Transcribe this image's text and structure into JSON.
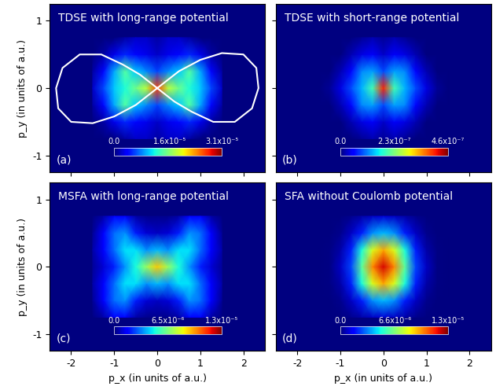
{
  "chart_data": [
    {
      "type": "heatmap",
      "title": "TDSE with long-range potential",
      "annotations": [
        "(a)"
      ],
      "ylabel": "p_y (in units of a.u.)",
      "tick_labels": "y",
      "xlim": [
        -2.5,
        2.5
      ],
      "ylim": [
        -1.25,
        1.25
      ],
      "xticks": [
        -2,
        -1,
        0,
        1,
        2
      ],
      "yticks": [
        -1,
        0,
        1
      ],
      "x": [
        -1.5,
        -1.25,
        -1,
        -0.75,
        -0.5,
        -0.25,
        0,
        0.25,
        0.5,
        0.75,
        1,
        1.25,
        1.5
      ],
      "y": [
        -0.75,
        -0.5,
        -0.25,
        0,
        0.25,
        0.5,
        0.75
      ],
      "cells": [
        [
          0,
          0,
          0,
          1e-06,
          2e-06,
          2e-06,
          1e-06,
          2e-06,
          2e-06,
          1e-06,
          0,
          0,
          0
        ],
        [
          0,
          1e-06,
          3e-06,
          5e-06,
          4e-06,
          3e-06,
          2e-06,
          3e-06,
          4e-06,
          5e-06,
          3e-06,
          1e-06,
          0
        ],
        [
          1e-06,
          4e-06,
          9e-06,
          1.4e-05,
          1e-05,
          8e-06,
          6e-06,
          8e-06,
          1e-05,
          1.4e-05,
          9e-06,
          4e-06,
          1e-06
        ],
        [
          2e-06,
          6e-06,
          1e-05,
          1.2e-05,
          1.5e-05,
          1.8e-05,
          2.6e-05,
          1.8e-05,
          1.5e-05,
          1.2e-05,
          1e-05,
          6e-06,
          2e-06
        ],
        [
          1e-06,
          4e-06,
          9e-06,
          1.4e-05,
          1e-05,
          8e-06,
          6e-06,
          8e-06,
          1e-05,
          1.4e-05,
          9e-06,
          4e-06,
          1e-06
        ],
        [
          0,
          1e-06,
          3e-06,
          5e-06,
          4e-06,
          3e-06,
          2e-06,
          3e-06,
          4e-06,
          5e-06,
          3e-06,
          1e-06,
          0
        ],
        [
          0,
          0,
          0,
          1e-06,
          2e-06,
          2e-06,
          1e-06,
          2e-06,
          2e-06,
          1e-06,
          0,
          0,
          0
        ]
      ],
      "colorbar": {
        "range": [
          0,
          3.1e-05
        ],
        "ticks": [
          {
            "value": 0,
            "label": "0.0"
          },
          {
            "value": 1.6e-05,
            "label": "1.6x10⁻⁵"
          },
          {
            "value": 3.1e-05,
            "label": "3.1x10⁻⁵"
          }
        ]
      },
      "curve": {
        "color": "white",
        "x": [
          0,
          -0.5,
          -1.0,
          -1.5,
          -2.0,
          -2.3,
          -2.35,
          -2.2,
          -1.8,
          -1.3,
          -0.8,
          -0.4,
          0,
          0.5,
          1.0,
          1.5,
          2.0,
          2.3,
          2.35,
          2.2,
          1.8,
          1.3,
          0.8,
          0.4,
          0
        ],
        "y": [
          0,
          -0.25,
          -0.42,
          -0.52,
          -0.5,
          -0.3,
          0,
          0.3,
          0.5,
          0.5,
          0.35,
          0.2,
          0,
          0.25,
          0.42,
          0.52,
          0.5,
          0.3,
          0,
          -0.3,
          -0.5,
          -0.5,
          -0.35,
          -0.2,
          0
        ]
      }
    },
    {
      "type": "heatmap",
      "title": "TDSE with short-range potential",
      "annotations": [
        "(b)"
      ],
      "tick_labels": false,
      "xlim": [
        -2.5,
        2.5
      ],
      "ylim": [
        -1.25,
        1.25
      ],
      "xticks": [
        -2,
        -1,
        0,
        1,
        2
      ],
      "yticks": [
        -1,
        0,
        1
      ],
      "x": [
        -1.5,
        -1.25,
        -1,
        -0.75,
        -0.5,
        -0.25,
        0,
        0.25,
        0.5,
        0.75,
        1,
        1.25,
        1.5
      ],
      "y": [
        -0.75,
        -0.5,
        -0.25,
        0,
        0.25,
        0.5,
        0.75
      ],
      "cells": [
        [
          0,
          0,
          0,
          0,
          1e-08,
          2e-08,
          1e-08,
          2e-08,
          1e-08,
          0,
          0,
          0,
          0
        ],
        [
          0,
          0,
          0,
          2e-08,
          4e-08,
          5e-08,
          3e-08,
          5e-08,
          4e-08,
          2e-08,
          0,
          0,
          0
        ],
        [
          0,
          0,
          2e-08,
          6e-08,
          1.2e-07,
          1.3e-07,
          9e-08,
          1.3e-07,
          1.2e-07,
          6e-08,
          2e-08,
          0,
          0
        ],
        [
          0,
          1e-08,
          4e-08,
          9e-08,
          1.4e-07,
          2e-07,
          4e-07,
          2e-07,
          1.4e-07,
          9e-08,
          4e-08,
          1e-08,
          0
        ],
        [
          0,
          0,
          2e-08,
          6e-08,
          1.2e-07,
          1.3e-07,
          9e-08,
          1.3e-07,
          1.2e-07,
          6e-08,
          2e-08,
          0,
          0
        ],
        [
          0,
          0,
          0,
          2e-08,
          4e-08,
          5e-08,
          3e-08,
          5e-08,
          4e-08,
          2e-08,
          0,
          0,
          0
        ],
        [
          0,
          0,
          0,
          0,
          1e-08,
          2e-08,
          1e-08,
          2e-08,
          1e-08,
          0,
          0,
          0,
          0
        ]
      ],
      "colorbar": {
        "range": [
          0,
          4.6e-07
        ],
        "ticks": [
          {
            "value": 0,
            "label": "0.0"
          },
          {
            "value": 2.3e-07,
            "label": "2.3x10⁻⁷"
          },
          {
            "value": 4.6e-07,
            "label": "4.6x10⁻⁷"
          }
        ]
      }
    },
    {
      "type": "heatmap",
      "title": "MSFA with long-range potential",
      "annotations": [
        "(c)"
      ],
      "xlabel": "p_x (in units of a.u.)",
      "ylabel": "p_y (in units of a.u.)",
      "tick_labels": true,
      "xlim": [
        -2.5,
        2.5
      ],
      "ylim": [
        -1.25,
        1.25
      ],
      "xticks": [
        -2,
        -1,
        0,
        1,
        2
      ],
      "yticks": [
        -1,
        0,
        1
      ],
      "x": [
        -1.5,
        -1.25,
        -1,
        -0.75,
        -0.5,
        -0.25,
        0,
        0.25,
        0.5,
        0.75,
        1,
        1.25,
        1.5
      ],
      "y": [
        -0.75,
        -0.5,
        -0.25,
        0,
        0.25,
        0.5,
        0.75
      ],
      "cells": [
        [
          0,
          5e-07,
          1.5e-06,
          1.5e-06,
          5e-07,
          2e-07,
          2e-07,
          2e-07,
          5e-07,
          1.5e-06,
          1.5e-06,
          5e-07,
          0
        ],
        [
          3e-07,
          1.5e-06,
          3e-06,
          3.5e-06,
          2e-06,
          1e-06,
          8e-07,
          1e-06,
          2e-06,
          3.5e-06,
          3e-06,
          1.5e-06,
          3e-07
        ],
        [
          5e-07,
          1.5e-06,
          3e-06,
          4.5e-06,
          4.5e-06,
          3.5e-06,
          4e-06,
          3.5e-06,
          4.5e-06,
          4.5e-06,
          3e-06,
          1.5e-06,
          5e-07
        ],
        [
          3e-07,
          1e-06,
          2e-06,
          3.5e-06,
          5e-06,
          7e-06,
          9e-06,
          7e-06,
          5e-06,
          3.5e-06,
          2e-06,
          1e-06,
          3e-07
        ],
        [
          5e-07,
          1.5e-06,
          3e-06,
          4.5e-06,
          4.5e-06,
          3.5e-06,
          4e-06,
          3.5e-06,
          4.5e-06,
          4.5e-06,
          3e-06,
          1.5e-06,
          5e-07
        ],
        [
          3e-07,
          1.5e-06,
          3e-06,
          3.5e-06,
          2e-06,
          1e-06,
          8e-07,
          1e-06,
          2e-06,
          3.5e-06,
          3e-06,
          1.5e-06,
          3e-07
        ],
        [
          0,
          5e-07,
          1.5e-06,
          1.5e-06,
          5e-07,
          2e-07,
          2e-07,
          2e-07,
          5e-07,
          1.5e-06,
          1.5e-06,
          5e-07,
          0
        ]
      ],
      "colorbar": {
        "range": [
          0,
          1.3e-05
        ],
        "ticks": [
          {
            "value": 0,
            "label": "0.0"
          },
          {
            "value": 6.5e-06,
            "label": "6.5x10⁻⁶"
          },
          {
            "value": 1.3e-05,
            "label": "1.3x10⁻⁵"
          }
        ]
      }
    },
    {
      "type": "heatmap",
      "title": "SFA without Coulomb potential",
      "annotations": [
        "(d)"
      ],
      "xlabel": "p_x (in units of a.u.)",
      "tick_labels": "x",
      "xlim": [
        -2.5,
        2.5
      ],
      "ylim": [
        -1.25,
        1.25
      ],
      "xticks": [
        -2,
        -1,
        0,
        1,
        2
      ],
      "yticks": [
        -1,
        0,
        1
      ],
      "x": [
        -1.5,
        -1.25,
        -1,
        -0.75,
        -0.5,
        -0.25,
        0,
        0.25,
        0.5,
        0.75,
        1,
        1.25,
        1.5
      ],
      "y": [
        -0.75,
        -0.5,
        -0.25,
        0,
        0.25,
        0.5,
        0.75
      ],
      "cells": [
        [
          0,
          0,
          0,
          2e-07,
          5e-07,
          8e-07,
          1e-06,
          8e-07,
          5e-07,
          2e-07,
          0,
          0,
          0
        ],
        [
          0,
          0,
          2e-07,
          8e-07,
          2e-06,
          3.5e-06,
          4e-06,
          3.5e-06,
          2e-06,
          8e-07,
          2e-07,
          0,
          0
        ],
        [
          0,
          1e-07,
          5e-07,
          2e-06,
          5e-06,
          8e-06,
          9.5e-06,
          8e-06,
          5e-06,
          2e-06,
          5e-07,
          1e-07,
          0
        ],
        [
          0,
          1e-07,
          8e-07,
          2.5e-06,
          6e-06,
          1e-05,
          1.2e-05,
          1e-05,
          6e-06,
          2.5e-06,
          8e-07,
          1e-07,
          0
        ],
        [
          0,
          1e-07,
          5e-07,
          2e-06,
          5e-06,
          8e-06,
          9.5e-06,
          8e-06,
          5e-06,
          2e-06,
          5e-07,
          1e-07,
          0
        ],
        [
          0,
          0,
          2e-07,
          8e-07,
          2e-06,
          3.5e-06,
          4e-06,
          3.5e-06,
          2e-06,
          8e-07,
          2e-07,
          0,
          0
        ],
        [
          0,
          0,
          0,
          2e-07,
          5e-07,
          8e-07,
          1e-06,
          8e-07,
          5e-07,
          2e-07,
          0,
          0,
          0
        ]
      ],
      "colorbar": {
        "range": [
          0,
          1.3e-05
        ],
        "ticks": [
          {
            "value": 0,
            "label": "0.0"
          },
          {
            "value": 6.6e-06,
            "label": "6.6x10⁻⁶"
          },
          {
            "value": 1.3e-05,
            "label": "1.3x10⁻⁵"
          }
        ]
      }
    }
  ]
}
